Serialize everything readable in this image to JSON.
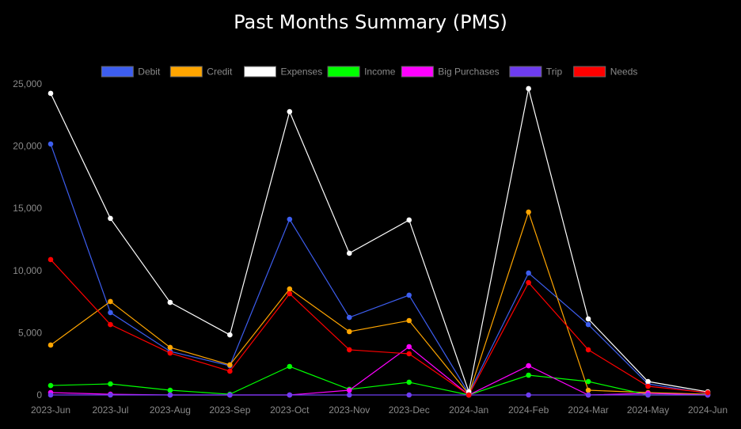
{
  "chart_data": {
    "type": "line",
    "title": "Past Months Summary (PMS)",
    "categories": [
      "2023-Jun",
      "2023-Jul",
      "2023-Aug",
      "2023-Sep",
      "2023-Oct",
      "2023-Nov",
      "2023-Dec",
      "2024-Jan",
      "2024-Feb",
      "2024-Mar",
      "2024-May",
      "2024-Jun"
    ],
    "ylim": [
      0,
      25000
    ],
    "yticks": [
      0,
      5000,
      10000,
      15000,
      20000,
      25000
    ],
    "ytick_labels": [
      "0",
      "5,000",
      "10,000",
      "15,000",
      "20,000",
      "25,000"
    ],
    "grid": false,
    "legend_position": "top",
    "series": [
      {
        "name": "Debit",
        "color": "#3d5ef0",
        "values": [
          20170,
          6620,
          3500,
          2350,
          14120,
          6230,
          8020,
          130,
          9800,
          5660,
          890,
          130
        ]
      },
      {
        "name": "Credit",
        "color": "#ffa500",
        "values": [
          4010,
          7510,
          3820,
          2420,
          8520,
          5090,
          5980,
          60,
          14700,
          380,
          190,
          60
        ]
      },
      {
        "name": "Expenses",
        "color": "#ffffff",
        "values": [
          24240,
          14190,
          7440,
          4830,
          22770,
          11390,
          14060,
          250,
          24620,
          6110,
          1080,
          250
        ]
      },
      {
        "name": "Income",
        "color": "#00ff00",
        "values": [
          760,
          890,
          380,
          60,
          2290,
          450,
          1020,
          0,
          1590,
          1080,
          0,
          0
        ]
      },
      {
        "name": "Big Purchases",
        "color": "#ff00ff",
        "values": [
          190,
          60,
          0,
          0,
          0,
          380,
          3880,
          0,
          2350,
          0,
          130,
          0
        ]
      },
      {
        "name": "Trip",
        "color": "#6e3cf0",
        "values": [
          0,
          0,
          0,
          0,
          0,
          0,
          0,
          0,
          0,
          0,
          0,
          0
        ]
      },
      {
        "name": "Needs",
        "color": "#ff0000",
        "values": [
          10880,
          5660,
          3370,
          1910,
          8140,
          3630,
          3310,
          0,
          9030,
          3630,
          700,
          190
        ]
      }
    ]
  }
}
